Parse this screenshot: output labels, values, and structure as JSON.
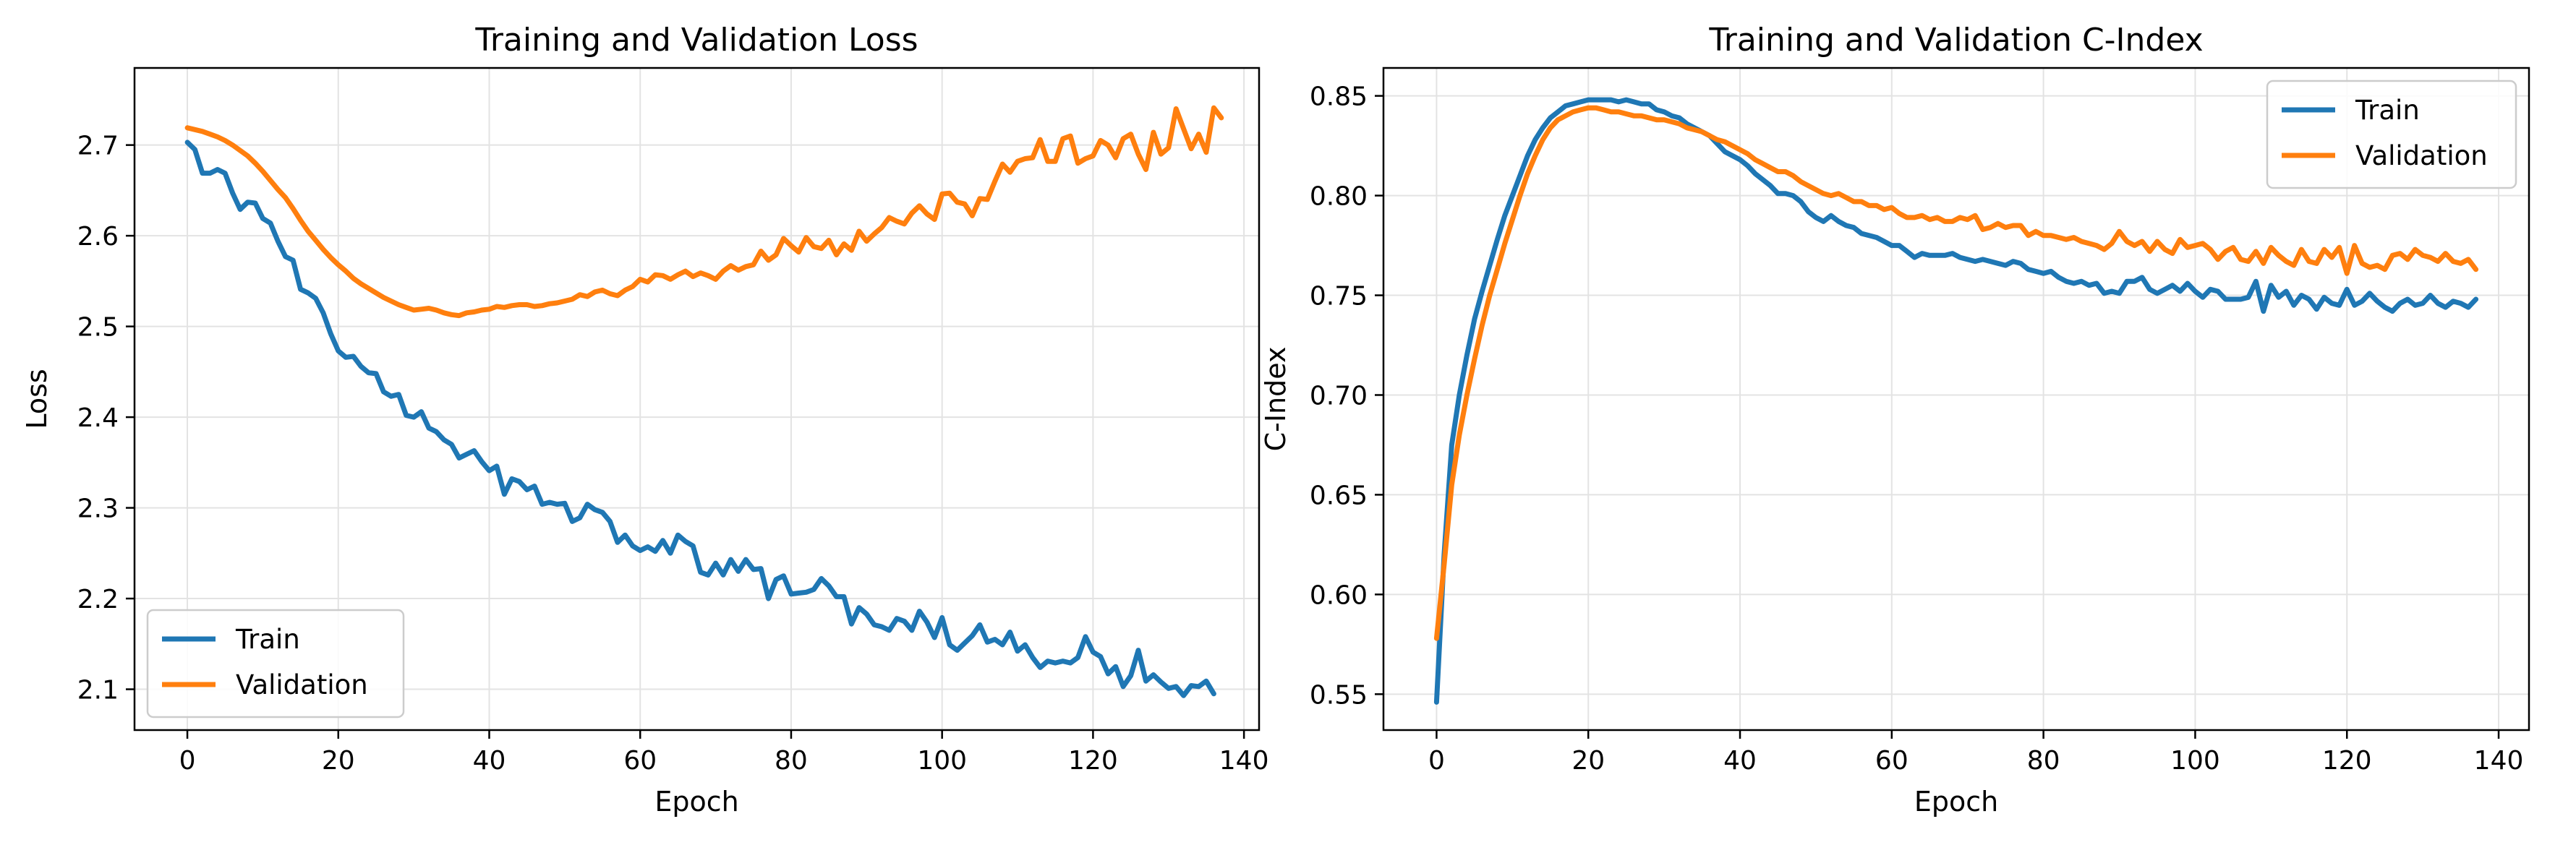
{
  "chart_data": [
    {
      "type": "line",
      "title": "Training and Validation Loss",
      "xlabel": "Epoch",
      "ylabel": "Loss",
      "xlim": [
        -7,
        142
      ],
      "ylim": [
        2.055,
        2.785
      ],
      "xticks": [
        0,
        20,
        40,
        60,
        80,
        100,
        120,
        140
      ],
      "yticks": [
        2.1,
        2.2,
        2.3,
        2.4,
        2.5,
        2.6,
        2.7
      ],
      "ytick_decimals": 1,
      "grid": true,
      "legend": "lower-left",
      "x_start": 0,
      "series": [
        {
          "name": "Train",
          "color": "#1f77b4",
          "values": [
            2.703,
            2.695,
            2.669,
            2.669,
            2.673,
            2.669,
            2.647,
            2.629,
            2.637,
            2.636,
            2.619,
            2.614,
            2.594,
            2.577,
            2.573,
            2.541,
            2.537,
            2.531,
            2.515,
            2.492,
            2.473,
            2.466,
            2.467,
            2.456,
            2.449,
            2.448,
            2.428,
            2.423,
            2.425,
            2.402,
            2.4,
            2.406,
            2.388,
            2.384,
            2.375,
            2.37,
            2.355,
            2.359,
            2.363,
            2.351,
            2.341,
            2.346,
            2.315,
            2.332,
            2.329,
            2.32,
            2.324,
            2.304,
            2.306,
            2.304,
            2.305,
            2.285,
            2.289,
            2.304,
            2.298,
            2.295,
            2.285,
            2.262,
            2.27,
            2.258,
            2.253,
            2.257,
            2.252,
            2.264,
            2.25,
            2.27,
            2.263,
            2.258,
            2.229,
            2.226,
            2.239,
            2.226,
            2.243,
            2.23,
            2.243,
            2.232,
            2.233,
            2.2,
            2.221,
            2.225,
            2.205,
            2.206,
            2.207,
            2.21,
            2.222,
            2.214,
            2.202,
            2.202,
            2.172,
            2.19,
            2.183,
            2.171,
            2.169,
            2.165,
            2.178,
            2.175,
            2.165,
            2.186,
            2.174,
            2.157,
            2.179,
            2.149,
            2.143,
            2.151,
            2.159,
            2.171,
            2.152,
            2.155,
            2.149,
            2.163,
            2.142,
            2.149,
            2.135,
            2.124,
            2.131,
            2.129,
            2.131,
            2.129,
            2.135,
            2.158,
            2.141,
            2.136,
            2.117,
            2.125,
            2.103,
            2.115,
            2.143,
            2.109,
            2.116,
            2.108,
            2.101,
            2.103,
            2.093,
            2.104,
            2.103,
            2.109,
            2.095
          ]
        },
        {
          "name": "Validation",
          "color": "#ff7f0e",
          "values": [
            2.719,
            2.717,
            2.715,
            2.712,
            2.709,
            2.705,
            2.7,
            2.694,
            2.688,
            2.68,
            2.671,
            2.661,
            2.651,
            2.642,
            2.63,
            2.617,
            2.605,
            2.595,
            2.585,
            2.576,
            2.568,
            2.561,
            2.553,
            2.547,
            2.542,
            2.537,
            2.532,
            2.528,
            2.524,
            2.521,
            2.518,
            2.519,
            2.52,
            2.518,
            2.515,
            2.513,
            2.512,
            2.515,
            2.516,
            2.518,
            2.519,
            2.522,
            2.521,
            2.523,
            2.524,
            2.524,
            2.522,
            2.523,
            2.525,
            2.526,
            2.528,
            2.53,
            2.535,
            2.533,
            2.538,
            2.54,
            2.536,
            2.534,
            2.54,
            2.544,
            2.552,
            2.549,
            2.557,
            2.556,
            2.552,
            2.557,
            2.561,
            2.555,
            2.559,
            2.556,
            2.552,
            2.561,
            2.567,
            2.562,
            2.566,
            2.568,
            2.583,
            2.573,
            2.579,
            2.597,
            2.589,
            2.582,
            2.598,
            2.588,
            2.586,
            2.595,
            2.579,
            2.591,
            2.584,
            2.605,
            2.594,
            2.602,
            2.609,
            2.62,
            2.616,
            2.613,
            2.625,
            2.633,
            2.624,
            2.618,
            2.646,
            2.647,
            2.637,
            2.635,
            2.622,
            2.641,
            2.64,
            2.66,
            2.679,
            2.67,
            2.682,
            2.685,
            2.686,
            2.706,
            2.682,
            2.682,
            2.707,
            2.71,
            2.68,
            2.685,
            2.688,
            2.705,
            2.7,
            2.686,
            2.707,
            2.712,
            2.69,
            2.673,
            2.714,
            2.69,
            2.697,
            2.74,
            2.718,
            2.696,
            2.712,
            2.692,
            2.741,
            2.73
          ]
        }
      ]
    },
    {
      "type": "line",
      "title": "Training and Validation C-Index",
      "xlabel": "Epoch",
      "ylabel": "C-Index",
      "xlim": [
        -7,
        144
      ],
      "ylim": [
        0.532,
        0.864
      ],
      "xticks": [
        0,
        20,
        40,
        60,
        80,
        100,
        120,
        140
      ],
      "yticks": [
        0.55,
        0.6,
        0.65,
        0.7,
        0.75,
        0.8,
        0.85
      ],
      "ytick_decimals": 2,
      "grid": true,
      "legend": "upper-right",
      "x_start": 0,
      "series": [
        {
          "name": "Train",
          "color": "#1f77b4",
          "values": [
            0.546,
            0.62,
            0.675,
            0.7,
            0.72,
            0.738,
            0.752,
            0.765,
            0.778,
            0.79,
            0.8,
            0.81,
            0.82,
            0.828,
            0.834,
            0.839,
            0.842,
            0.845,
            0.846,
            0.847,
            0.848,
            0.848,
            0.848,
            0.848,
            0.847,
            0.848,
            0.847,
            0.846,
            0.846,
            0.843,
            0.842,
            0.84,
            0.839,
            0.836,
            0.834,
            0.832,
            0.83,
            0.826,
            0.822,
            0.82,
            0.818,
            0.815,
            0.811,
            0.808,
            0.805,
            0.801,
            0.801,
            0.8,
            0.797,
            0.792,
            0.789,
            0.787,
            0.79,
            0.787,
            0.785,
            0.784,
            0.781,
            0.78,
            0.779,
            0.777,
            0.775,
            0.775,
            0.772,
            0.769,
            0.771,
            0.77,
            0.77,
            0.77,
            0.771,
            0.769,
            0.768,
            0.767,
            0.768,
            0.767,
            0.766,
            0.765,
            0.767,
            0.766,
            0.763,
            0.762,
            0.761,
            0.762,
            0.759,
            0.757,
            0.756,
            0.757,
            0.755,
            0.756,
            0.751,
            0.752,
            0.751,
            0.757,
            0.757,
            0.759,
            0.753,
            0.751,
            0.753,
            0.755,
            0.752,
            0.756,
            0.752,
            0.749,
            0.753,
            0.752,
            0.748,
            0.748,
            0.748,
            0.749,
            0.757,
            0.742,
            0.755,
            0.749,
            0.752,
            0.745,
            0.75,
            0.748,
            0.743,
            0.749,
            0.746,
            0.745,
            0.753,
            0.745,
            0.747,
            0.751,
            0.747,
            0.744,
            0.742,
            0.746,
            0.748,
            0.745,
            0.746,
            0.75,
            0.746,
            0.744,
            0.747,
            0.746,
            0.744,
            0.748
          ]
        },
        {
          "name": "Validation",
          "color": "#ff7f0e",
          "values": [
            0.578,
            0.615,
            0.655,
            0.68,
            0.7,
            0.718,
            0.735,
            0.75,
            0.763,
            0.776,
            0.788,
            0.8,
            0.811,
            0.82,
            0.828,
            0.834,
            0.838,
            0.84,
            0.842,
            0.843,
            0.844,
            0.844,
            0.843,
            0.842,
            0.842,
            0.841,
            0.84,
            0.84,
            0.839,
            0.838,
            0.838,
            0.837,
            0.836,
            0.834,
            0.833,
            0.832,
            0.83,
            0.828,
            0.827,
            0.825,
            0.823,
            0.821,
            0.818,
            0.816,
            0.814,
            0.812,
            0.812,
            0.81,
            0.807,
            0.805,
            0.803,
            0.801,
            0.8,
            0.801,
            0.799,
            0.797,
            0.797,
            0.795,
            0.795,
            0.793,
            0.794,
            0.791,
            0.789,
            0.789,
            0.79,
            0.788,
            0.789,
            0.787,
            0.787,
            0.789,
            0.788,
            0.79,
            0.783,
            0.784,
            0.786,
            0.784,
            0.785,
            0.785,
            0.78,
            0.782,
            0.78,
            0.78,
            0.779,
            0.778,
            0.779,
            0.777,
            0.776,
            0.775,
            0.773,
            0.776,
            0.782,
            0.777,
            0.775,
            0.777,
            0.772,
            0.777,
            0.773,
            0.771,
            0.778,
            0.774,
            0.775,
            0.776,
            0.773,
            0.768,
            0.772,
            0.774,
            0.768,
            0.767,
            0.772,
            0.766,
            0.774,
            0.77,
            0.767,
            0.765,
            0.773,
            0.767,
            0.766,
            0.773,
            0.769,
            0.774,
            0.761,
            0.775,
            0.766,
            0.764,
            0.765,
            0.763,
            0.77,
            0.771,
            0.768,
            0.773,
            0.77,
            0.769,
            0.767,
            0.771,
            0.767,
            0.766,
            0.768,
            0.763
          ]
        }
      ]
    }
  ]
}
